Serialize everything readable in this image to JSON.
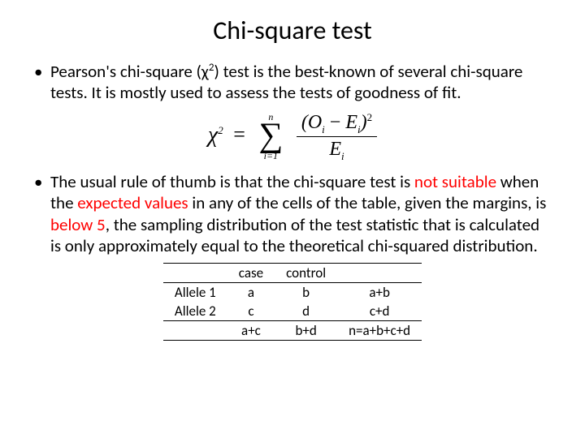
{
  "title": "Chi-square test",
  "bullet1": {
    "pre": "Pearson's chi-square (χ",
    "sup": "2",
    "post": ") test is the best-known of several chi-square tests. It is mostly used to assess the tests of goodness of fit."
  },
  "formula": {
    "chi": "χ",
    "exp": "2",
    "eq": "=",
    "sum_top": "n",
    "sum_sym": "∑",
    "sum_bot": "i=1",
    "num_open": "(",
    "num_O": "O",
    "num_sub1": "i",
    "num_minus": " − ",
    "num_E": "E",
    "num_sub2": "i",
    "num_close": ")",
    "num_exp": "2",
    "den_E": "E",
    "den_sub": "i"
  },
  "bullet2": {
    "p1": "The usual rule of thumb is that the chi-square test is ",
    "r1": "not suitable",
    "p2": " when the ",
    "r2": "expected values",
    "p3": " in any of the cells of the table, given the margins, is ",
    "r3": "below 5",
    "p4": ", the sampling distribution of the test statistic that is calculated is only approximately equal to the theoretical chi-squared distribution."
  },
  "table": {
    "h1": "case",
    "h2": "control",
    "r1c0": "Allele 1",
    "r1c1": "a",
    "r1c2": "b",
    "r1c3": "a+b",
    "r2c0": "Allele 2",
    "r2c1": "c",
    "r2c2": "d",
    "r2c3": "c+d",
    "r3c1": "a+c",
    "r3c2": "b+d",
    "r3c3": "n=a+b+c+d"
  }
}
